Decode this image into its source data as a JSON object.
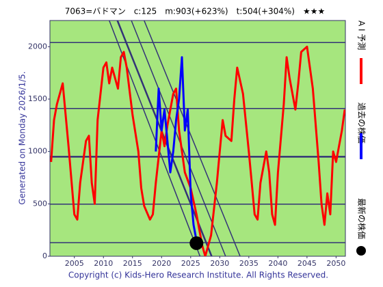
{
  "chart_data": {
    "type": "line",
    "title": "7063=バドマン　c:125　m:903(+623%)　t:504(+304%)　★★★",
    "side_note": "Generated on Monday 2026/1/5.",
    "copyright": "Copyright (c) Kids-Hero Research Institute. All Rights Reserved.",
    "xlim": [
      2000.8,
      2051.6
    ],
    "xticks": [
      2005,
      2010,
      2015,
      2020,
      2025,
      2030,
      2035,
      2040,
      2045,
      2050
    ],
    "ylim": [
      0,
      2250
    ],
    "yticks": [
      0,
      500,
      1000,
      1500,
      2000
    ],
    "hlines": [
      2040,
      1410,
      950,
      497,
      130
    ],
    "trend_lines": [
      {
        "x": [
          2012.4,
          2028.6
        ],
        "y": [
          2250,
          0
        ]
      },
      {
        "x": [
          2014.8,
          2031.0
        ],
        "y": [
          2250,
          0
        ]
      },
      {
        "x": [
          2017.0,
          2033.5
        ],
        "y": [
          2250,
          0
        ]
      },
      {
        "x": [
          2011.0,
          2026.6
        ],
        "y": [
          2250,
          0
        ]
      }
    ],
    "series": [
      {
        "name": "A I 予測",
        "color": "#ff0000",
        "x": [
          2001,
          2001.5,
          2002,
          2003,
          2004,
          2005,
          2005.5,
          2006,
          2007,
          2007.5,
          2008,
          2008.5,
          2009,
          2010,
          2010.5,
          2011,
          2011.5,
          2012.5,
          2013,
          2013.5,
          2014,
          2015,
          2016,
          2016.5,
          2017,
          2018,
          2018.5,
          2019,
          2020,
          2020.5,
          2021,
          2022,
          2022.5,
          2023,
          2024,
          2025,
          2026,
          2027,
          2027.5,
          2028.5,
          2029.5,
          2030,
          2030.5,
          2031,
          2032,
          2032.5,
          2033,
          2034,
          2035,
          2035.5,
          2036,
          2036.5,
          2037,
          2038,
          2038.5,
          2039,
          2039.5,
          2040,
          2041,
          2041.5,
          2042,
          2043,
          2043.5,
          2044,
          2045,
          2046,
          2047,
          2047.5,
          2048,
          2048.5,
          2049,
          2049.5,
          2050,
          2051,
          2051.5
        ],
        "values": [
          900,
          1300,
          1450,
          1650,
          1050,
          400,
          350,
          700,
          1100,
          1150,
          700,
          500,
          1300,
          1800,
          1850,
          1650,
          1800,
          1600,
          1900,
          1950,
          1800,
          1350,
          1000,
          650,
          480,
          350,
          400,
          700,
          1200,
          1050,
          1250,
          1550,
          1600,
          1200,
          800,
          650,
          400,
          100,
          0,
          200,
          700,
          1000,
          1300,
          1150,
          1100,
          1500,
          1800,
          1550,
          1000,
          700,
          400,
          350,
          700,
          1000,
          800,
          400,
          300,
          800,
          1450,
          1900,
          1700,
          1400,
          1650,
          1950,
          2000,
          1600,
          900,
          500,
          300,
          600,
          400,
          1000,
          900,
          1200,
          1400
        ]
      },
      {
        "name": "過去の株価",
        "color": "#0000ff",
        "x": [
          2019,
          2019.5,
          2020,
          2020.5,
          2021,
          2021.5,
          2022,
          2022.5,
          2023,
          2023.5,
          2024,
          2024.5,
          2025,
          2025.5,
          2026
        ],
        "values": [
          1000,
          1600,
          1200,
          1400,
          1100,
          800,
          1000,
          1300,
          1500,
          1900,
          1200,
          1400,
          600,
          300,
          150
        ]
      }
    ],
    "latest": {
      "name": "最新の株価",
      "x": 2026,
      "value": 125,
      "color": "#000000"
    }
  }
}
